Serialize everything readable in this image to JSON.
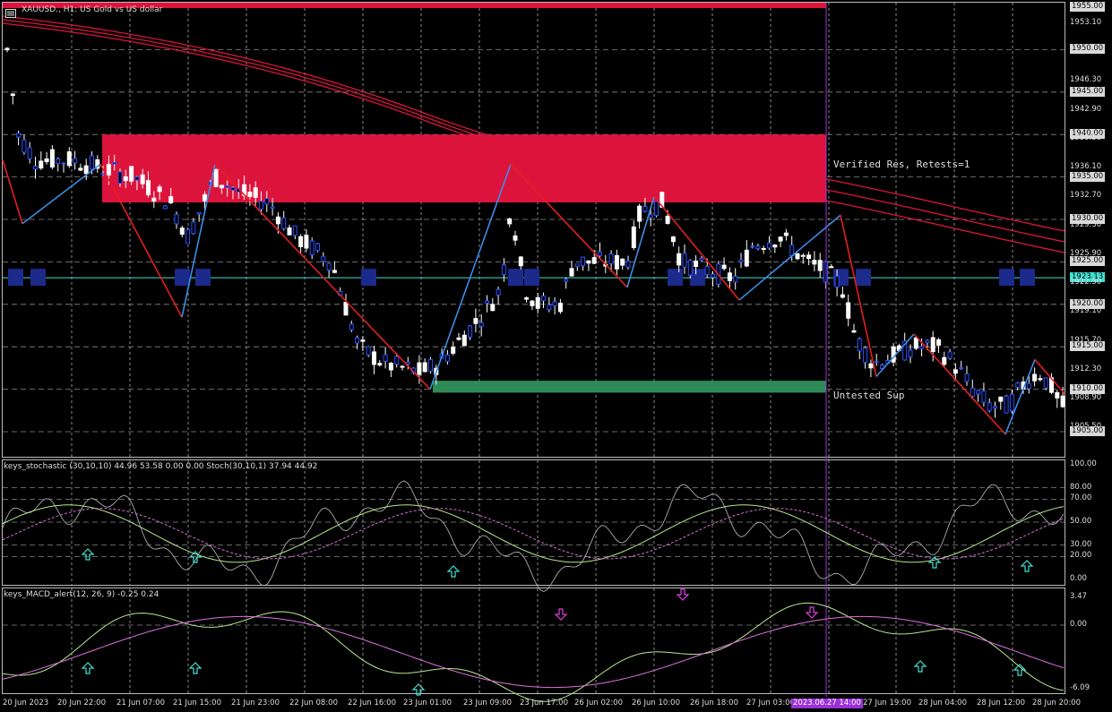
{
  "window": {
    "title": "XAUUSD., H1:  US Gold vs US dollar"
  },
  "main_panel": {
    "price_labels": [
      {
        "text": "1955.00",
        "boxed": true
      },
      {
        "text": "1953.10",
        "boxed": false
      },
      {
        "text": "1950.00",
        "boxed": true
      },
      {
        "text": "1946.30",
        "boxed": false
      },
      {
        "text": "1945.00",
        "boxed": true
      },
      {
        "text": "1942.90",
        "boxed": false
      },
      {
        "text": "1940.00",
        "boxed": true
      },
      {
        "text": "1939.50",
        "boxed": false
      },
      {
        "text": "1936.10",
        "boxed": false
      },
      {
        "text": "1935.00",
        "boxed": true
      },
      {
        "text": "1932.70",
        "boxed": false
      },
      {
        "text": "1930.00",
        "boxed": true
      },
      {
        "text": "1929.30",
        "boxed": false
      },
      {
        "text": "1925.90",
        "boxed": false
      },
      {
        "text": "1925.00",
        "boxed": true
      },
      {
        "text": "1923.13",
        "boxed": true,
        "highlight": true
      },
      {
        "text": "1922.50",
        "boxed": false
      },
      {
        "text": "1920.00",
        "boxed": true
      },
      {
        "text": "1919.10",
        "boxed": false
      },
      {
        "text": "1915.70",
        "boxed": false
      },
      {
        "text": "1915.00",
        "boxed": true
      },
      {
        "text": "1912.30",
        "boxed": false
      },
      {
        "text": "1910.00",
        "boxed": true
      },
      {
        "text": "1908.90",
        "boxed": false
      },
      {
        "text": "1905.50",
        "boxed": false
      },
      {
        "text": "1905.00",
        "boxed": true
      }
    ],
    "annotations": {
      "resistance": "Verified Res, Retests=1",
      "support": "Untested Sup"
    },
    "colors": {
      "resistance_zone": "#dc143c",
      "support_zone": "#2e8b57",
      "zigzag_up": "#3c8ce6",
      "zigzag_down": "#e61e1e",
      "ma_lines": "#dc143c",
      "current_price_line": "#40e0d0",
      "vertical_marker": "#9b30d9"
    }
  },
  "stoch_panel": {
    "label": "keys_stochastic (30,10,10) 44.96 53.58 0.00 0.00 Stoch(30,10,1) 37.94 44.92",
    "levels": [
      "100.00",
      "80.00",
      "70.00",
      "50.00",
      "30.00",
      "20.00",
      "0.00"
    ]
  },
  "macd_panel": {
    "label": "keys_MACD_alert(12, 26, 9) -0.25 0.24",
    "levels": [
      "3.47",
      "0.00",
      "-6.09"
    ]
  },
  "time_axis": {
    "labels": [
      "20 Jun 2023",
      "20 Jun 22:00",
      "21 Jun 07:00",
      "21 Jun 15:00",
      "21 Jun 23:00",
      "22 Jun 08:00",
      "22 Jun 16:00",
      "23 Jun 01:00",
      "23 Jun 09:00",
      "23 Jun 17:00",
      "26 Jun 02:00",
      "26 Jun 10:00",
      "26 Jun 18:00",
      "27 Jun 03:00",
      "27 Jun 19:00",
      "28 Jun 04:00",
      "28 Jun 12:00",
      "28 Jun 20:00"
    ],
    "marker_label": "2023.06.27 14:00"
  }
}
